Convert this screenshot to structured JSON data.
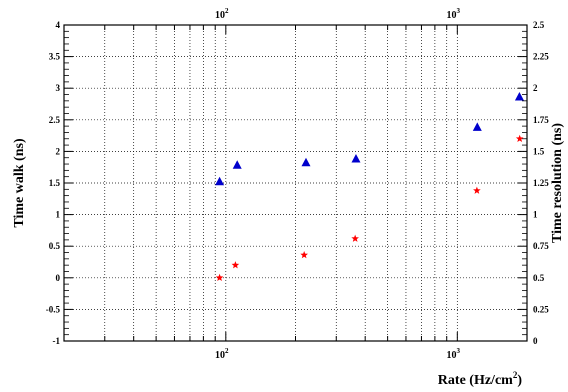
{
  "chart_data": {
    "type": "scatter",
    "title": "",
    "xlabel": "Rate (Hz/cm",
    "xlabel_sup": "2",
    "xlabel_suffix": ")",
    "ylabel_left": "Time walk (ns)",
    "ylabel_right": "Time resolution (ns)",
    "x_scale": "log",
    "xlim": [
      20,
      2000
    ],
    "ylim_left": [
      -1,
      4
    ],
    "ylim_right": [
      0,
      2.5
    ],
    "grid": true,
    "x_tick_labels": [
      {
        "value": 100,
        "base": "10",
        "exp": "2"
      },
      {
        "value": 1000,
        "base": "10",
        "exp": "3"
      }
    ],
    "left_ticks": [
      "-1",
      "-0.5",
      "0",
      "0.5",
      "1",
      "1.5",
      "2",
      "2.5",
      "3",
      "3.5",
      "4"
    ],
    "right_ticks": [
      "0",
      "0.25",
      "0.5",
      "0.75",
      "1",
      "1.25",
      "1.5",
      "1.75",
      "2",
      "2.25",
      "2.5"
    ],
    "series": [
      {
        "axis": "left",
        "marker": "triangle",
        "color": "#0000cc",
        "x": [
          94,
          112,
          222,
          365,
          1220,
          1855
        ],
        "y": [
          1.52,
          1.78,
          1.82,
          1.88,
          2.38,
          2.86
        ]
      },
      {
        "axis": "right",
        "marker": "star",
        "color": "#ff0000",
        "x": [
          94,
          110,
          218,
          362,
          1215,
          1860
        ],
        "y": [
          0.5,
          0.6,
          0.68,
          0.81,
          1.19,
          1.6
        ]
      }
    ]
  }
}
